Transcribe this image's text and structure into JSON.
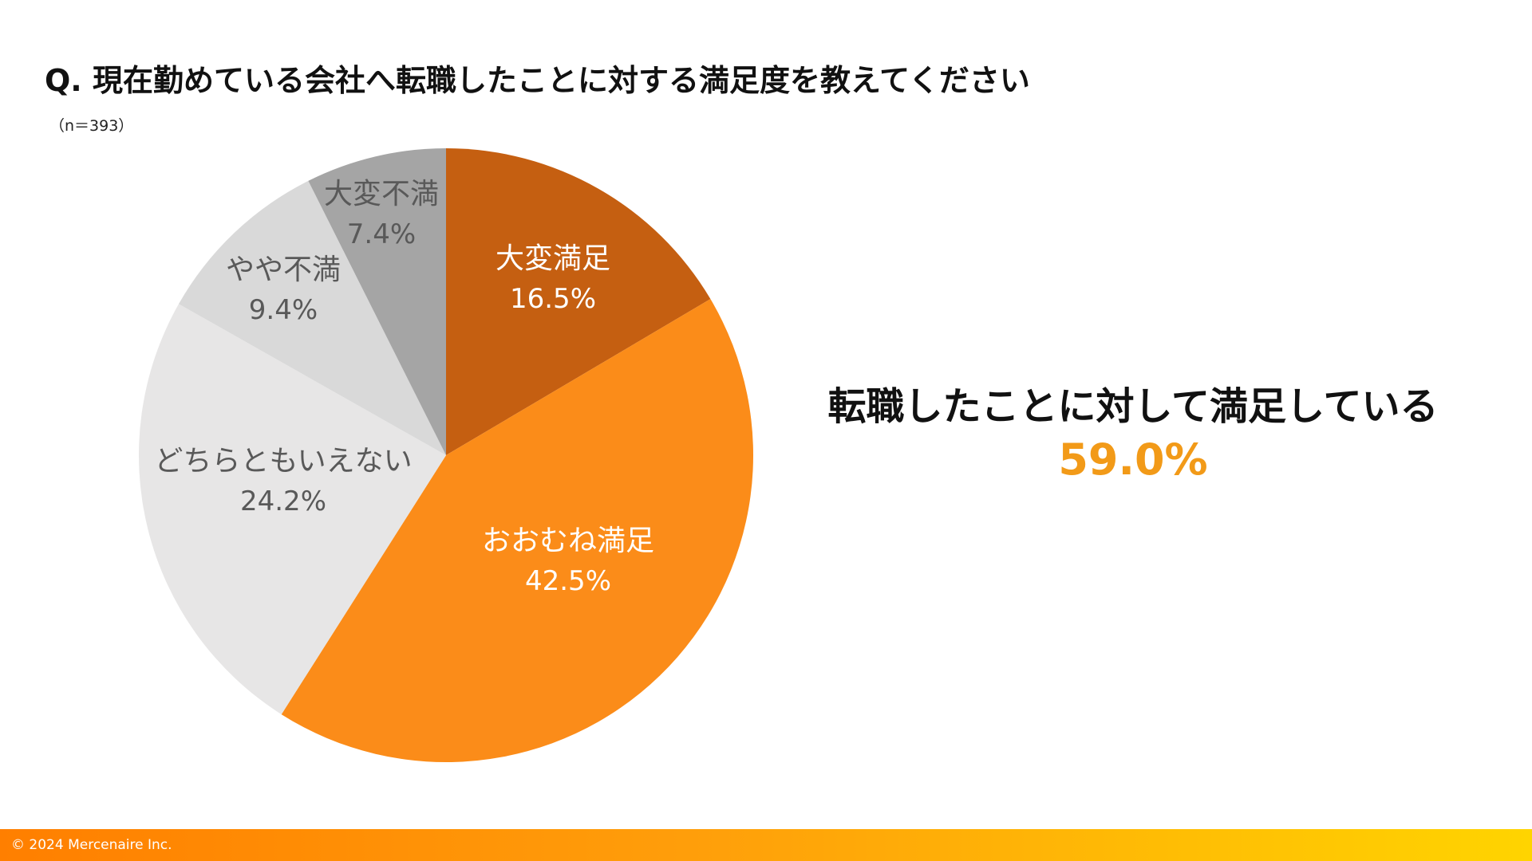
{
  "title": "Q. 現在勤めている会社へ転職したことに対する満足度を教えてください",
  "sample_size": "（n＝393）",
  "summary": {
    "label": "転職したことに対して満足している",
    "value": "59.0%"
  },
  "footer": {
    "copyright": "© 2024 Mercenaire Inc."
  },
  "colors": {
    "accent": "#f29a18",
    "footer_start": "#ff7f00",
    "footer_end": "#ffd400"
  },
  "chart_data": {
    "type": "pie",
    "start_angle_deg": 0,
    "direction": "clockwise",
    "slices": [
      {
        "label": "大変満足",
        "value": 16.5,
        "value_label": "16.5%",
        "color": "#c55f11",
        "label_color": "#ffffff"
      },
      {
        "label": "おおむね満足",
        "value": 42.5,
        "value_label": "42.5%",
        "color": "#fb8c19",
        "label_color": "#ffffff"
      },
      {
        "label": "どちらともいえない",
        "value": 24.2,
        "value_label": "24.2%",
        "color": "#e7e6e6",
        "label_color": "#595959"
      },
      {
        "label": "やや不満",
        "value": 9.4,
        "value_label": "9.4%",
        "color": "#d9d9d9",
        "label_color": "#595959"
      },
      {
        "label": "大変不満",
        "value": 7.4,
        "value_label": "7.4%",
        "color": "#a5a5a5",
        "label_color": "#595959"
      }
    ]
  }
}
